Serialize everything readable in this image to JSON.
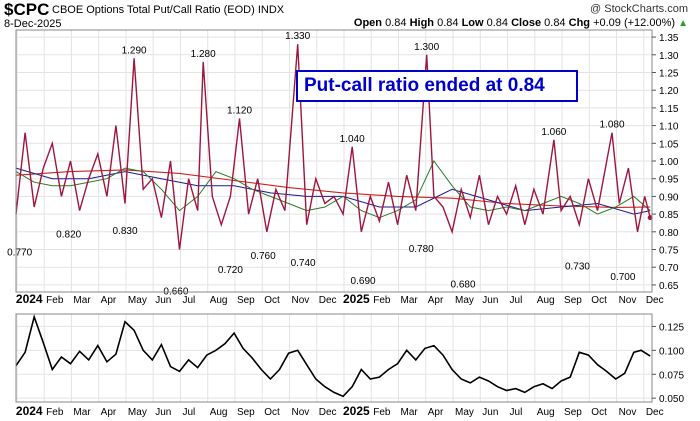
{
  "header": {
    "symbol": "$CPC",
    "description": "CBOE Options Total Put/Call Ratio (EOD)",
    "exchange": "INDX",
    "date": "8-Dec-2025",
    "watermark": "@ StockCharts.com",
    "open_label": "Open",
    "open": "0.84",
    "high_label": "High",
    "high": "0.84",
    "low_label": "Low",
    "low": "0.84",
    "close_label": "Close",
    "close": "0.84",
    "chg_label": "Chg",
    "chg": "+0.09 (+12.00%)"
  },
  "annotation": "Put-call ratio ended at 0.84",
  "colors": {
    "price": "#a0153e",
    "ma_short": "#2a7a2a",
    "ma_mid": "#1a1a8c",
    "ma_long": "#cc2222",
    "lower": "#000000",
    "callout": "#0000cc",
    "up_arrow": "#2a9d2a"
  },
  "chart_data": [
    {
      "type": "line",
      "title": "",
      "x_axis": {
        "months": [
          "2024",
          "Feb",
          "Mar",
          "Apr",
          "May",
          "Jun",
          "Jul",
          "Aug",
          "Sep",
          "Oct",
          "Nov",
          "Dec",
          "2025",
          "Feb",
          "Mar",
          "Apr",
          "May",
          "Jun",
          "Jul",
          "Aug",
          "Sep",
          "Oct",
          "Nov",
          "Dec"
        ]
      },
      "y_axis": {
        "ylim": [
          0.63,
          1.37
        ],
        "ticks": [
          "1.35",
          "1.30",
          "1.25",
          "1.20",
          "1.15",
          "1.10",
          "1.05",
          "1.00",
          "0.95",
          "0.90",
          "0.85",
          "0.80",
          "0.75",
          "0.70",
          "0.65"
        ],
        "position": "right"
      },
      "grid": true,
      "peak_labels": [
        {
          "t": 6.5,
          "v": 1.29,
          "text": "1.290"
        },
        {
          "t": 10.3,
          "v": 1.28,
          "text": "1.280"
        },
        {
          "t": 12.3,
          "v": 1.12,
          "text": "1.120"
        },
        {
          "t": 15.5,
          "v": 1.33,
          "text": "1.330"
        },
        {
          "t": 18.5,
          "v": 1.04,
          "text": "1.040"
        },
        {
          "t": 22.6,
          "v": 1.3,
          "text": "1.300"
        },
        {
          "t": 29.6,
          "v": 1.06,
          "text": "1.060"
        },
        {
          "t": 32.8,
          "v": 1.08,
          "text": "1.080"
        }
      ],
      "trough_labels": [
        {
          "t": 0.2,
          "v": 0.77,
          "text": "0.770"
        },
        {
          "t": 2.9,
          "v": 0.82,
          "text": "0.820"
        },
        {
          "t": 6.0,
          "v": 0.83,
          "text": "0.830"
        },
        {
          "t": 8.8,
          "v": 0.66,
          "text": "0.660"
        },
        {
          "t": 11.8,
          "v": 0.72,
          "text": "0.720"
        },
        {
          "t": 13.6,
          "v": 0.76,
          "text": "0.760"
        },
        {
          "t": 15.8,
          "v": 0.74,
          "text": "0.740"
        },
        {
          "t": 19.1,
          "v": 0.69,
          "text": "0.690"
        },
        {
          "t": 22.3,
          "v": 0.78,
          "text": "0.780"
        },
        {
          "t": 24.6,
          "v": 0.68,
          "text": "0.680"
        },
        {
          "t": 30.9,
          "v": 0.73,
          "text": "0.730"
        },
        {
          "t": 33.4,
          "v": 0.7,
          "text": "0.700"
        }
      ],
      "last": {
        "t": 34.9,
        "v": 0.84
      },
      "series": [
        {
          "name": "",
          "values": [
            [
              0,
              0.85
            ],
            [
              0.5,
              1.08
            ],
            [
              1,
              0.87
            ],
            [
              1.5,
              0.98
            ],
            [
              2,
              1.05
            ],
            [
              2.5,
              0.9
            ],
            [
              3,
              1.0
            ],
            [
              3.5,
              0.86
            ],
            [
              4,
              0.95
            ],
            [
              4.5,
              1.02
            ],
            [
              5,
              0.9
            ],
            [
              5.5,
              1.1
            ],
            [
              6,
              0.88
            ],
            [
              6.5,
              1.29
            ],
            [
              7,
              0.92
            ],
            [
              7.5,
              0.95
            ],
            [
              8,
              0.84
            ],
            [
              8.5,
              1.0
            ],
            [
              9,
              0.75
            ],
            [
              9.5,
              0.95
            ],
            [
              10,
              0.86
            ],
            [
              10.3,
              1.28
            ],
            [
              10.8,
              0.9
            ],
            [
              11.3,
              0.82
            ],
            [
              11.8,
              0.9
            ],
            [
              12.3,
              1.12
            ],
            [
              12.8,
              0.85
            ],
            [
              13.3,
              0.95
            ],
            [
              13.8,
              0.8
            ],
            [
              14.3,
              0.92
            ],
            [
              14.8,
              0.86
            ],
            [
              15.5,
              1.33
            ],
            [
              16,
              0.82
            ],
            [
              16.5,
              0.95
            ],
            [
              17,
              0.88
            ],
            [
              17.5,
              0.9
            ],
            [
              18,
              0.85
            ],
            [
              18.5,
              1.04
            ],
            [
              19,
              0.8
            ],
            [
              19.5,
              0.9
            ],
            [
              20,
              0.83
            ],
            [
              20.5,
              0.94
            ],
            [
              21,
              0.82
            ],
            [
              21.5,
              0.96
            ],
            [
              22,
              0.86
            ],
            [
              22.6,
              1.3
            ],
            [
              23,
              0.9
            ],
            [
              23.5,
              0.87
            ],
            [
              24,
              0.8
            ],
            [
              24.5,
              0.92
            ],
            [
              25,
              0.84
            ],
            [
              25.5,
              0.96
            ],
            [
              26,
              0.82
            ],
            [
              26.5,
              0.9
            ],
            [
              27,
              0.85
            ],
            [
              27.5,
              0.93
            ],
            [
              28,
              0.82
            ],
            [
              28.5,
              0.92
            ],
            [
              29,
              0.85
            ],
            [
              29.6,
              1.06
            ],
            [
              30,
              0.86
            ],
            [
              30.5,
              0.9
            ],
            [
              31,
              0.82
            ],
            [
              31.5,
              0.95
            ],
            [
              32,
              0.86
            ],
            [
              32.8,
              1.08
            ],
            [
              33.2,
              0.88
            ],
            [
              33.7,
              0.98
            ],
            [
              34.2,
              0.8
            ],
            [
              34.6,
              0.9
            ],
            [
              34.9,
              0.84
            ]
          ]
        },
        {
          "name": "",
          "values": [
            [
              0,
              0.97
            ],
            [
              1,
              0.94
            ],
            [
              2,
              0.93
            ],
            [
              3,
              0.93
            ],
            [
              4,
              0.94
            ],
            [
              5,
              0.95
            ],
            [
              6,
              0.98
            ],
            [
              7,
              0.97
            ],
            [
              8,
              0.92
            ],
            [
              9,
              0.86
            ],
            [
              10,
              0.9
            ],
            [
              11,
              0.97
            ],
            [
              12,
              0.95
            ],
            [
              13,
              0.92
            ],
            [
              14,
              0.9
            ],
            [
              15,
              0.88
            ],
            [
              16,
              0.86
            ],
            [
              17,
              0.87
            ],
            [
              18,
              0.9
            ],
            [
              19,
              0.86
            ],
            [
              20,
              0.84
            ],
            [
              21,
              0.86
            ],
            [
              22,
              0.89
            ],
            [
              23,
              1.0
            ],
            [
              24,
              0.93
            ],
            [
              25,
              0.87
            ],
            [
              26,
              0.86
            ],
            [
              27,
              0.87
            ],
            [
              28,
              0.86
            ],
            [
              29,
              0.88
            ],
            [
              30,
              0.9
            ],
            [
              31,
              0.88
            ],
            [
              32,
              0.85
            ],
            [
              33,
              0.87
            ],
            [
              34,
              0.9
            ],
            [
              34.9,
              0.86
            ]
          ]
        },
        {
          "name": "",
          "values": [
            [
              0,
              0.98
            ],
            [
              2,
              0.95
            ],
            [
              4,
              0.95
            ],
            [
              6,
              0.97
            ],
            [
              8,
              0.95
            ],
            [
              10,
              0.93
            ],
            [
              12,
              0.93
            ],
            [
              14,
              0.91
            ],
            [
              16,
              0.9
            ],
            [
              18,
              0.9
            ],
            [
              20,
              0.87
            ],
            [
              22,
              0.87
            ],
            [
              24,
              0.92
            ],
            [
              26,
              0.89
            ],
            [
              28,
              0.86
            ],
            [
              30,
              0.87
            ],
            [
              32,
              0.88
            ],
            [
              34,
              0.85
            ],
            [
              34.9,
              0.86
            ]
          ]
        },
        {
          "name": "",
          "values": [
            [
              0,
              0.96
            ],
            [
              3,
              0.97
            ],
            [
              6,
              0.975
            ],
            [
              9,
              0.965
            ],
            [
              12,
              0.945
            ],
            [
              15,
              0.925
            ],
            [
              18,
              0.91
            ],
            [
              21,
              0.9
            ],
            [
              24,
              0.895
            ],
            [
              27,
              0.88
            ],
            [
              30,
              0.873
            ],
            [
              33,
              0.869
            ],
            [
              34.9,
              0.87
            ]
          ]
        }
      ]
    },
    {
      "type": "line",
      "title": "",
      "y_axis": {
        "ylim": [
          0.046,
          0.138
        ],
        "ticks": [
          "0.125",
          "0.100",
          "0.075",
          "0.050"
        ],
        "position": "right"
      },
      "grid": true,
      "series": [
        {
          "name": "",
          "values": [
            [
              0,
              0.084
            ],
            [
              0.5,
              0.098
            ],
            [
              1,
              0.135
            ],
            [
              1.5,
              0.108
            ],
            [
              2,
              0.08
            ],
            [
              2.5,
              0.093
            ],
            [
              3,
              0.086
            ],
            [
              3.5,
              0.099
            ],
            [
              4,
              0.09
            ],
            [
              4.5,
              0.105
            ],
            [
              5,
              0.088
            ],
            [
              5.5,
              0.096
            ],
            [
              6,
              0.13
            ],
            [
              6.5,
              0.121
            ],
            [
              7,
              0.1
            ],
            [
              7.5,
              0.09
            ],
            [
              8,
              0.106
            ],
            [
              8.5,
              0.083
            ],
            [
              9,
              0.078
            ],
            [
              9.5,
              0.09
            ],
            [
              10,
              0.082
            ],
            [
              10.5,
              0.095
            ],
            [
              11,
              0.1
            ],
            [
              11.5,
              0.107
            ],
            [
              12,
              0.118
            ],
            [
              12.5,
              0.102
            ],
            [
              13,
              0.092
            ],
            [
              13.5,
              0.08
            ],
            [
              14,
              0.07
            ],
            [
              14.5,
              0.08
            ],
            [
              15,
              0.097
            ],
            [
              15.5,
              0.1
            ],
            [
              16,
              0.085
            ],
            [
              16.5,
              0.07
            ],
            [
              17,
              0.062
            ],
            [
              17.5,
              0.056
            ],
            [
              18,
              0.052
            ],
            [
              18.5,
              0.062
            ],
            [
              19,
              0.08
            ],
            [
              19.5,
              0.07
            ],
            [
              20,
              0.072
            ],
            [
              20.5,
              0.08
            ],
            [
              21,
              0.086
            ],
            [
              21.5,
              0.1
            ],
            [
              22,
              0.09
            ],
            [
              22.5,
              0.102
            ],
            [
              23,
              0.105
            ],
            [
              23.5,
              0.095
            ],
            [
              24,
              0.08
            ],
            [
              24.5,
              0.07
            ],
            [
              25,
              0.066
            ],
            [
              25.5,
              0.072
            ],
            [
              26,
              0.068
            ],
            [
              26.5,
              0.062
            ],
            [
              27,
              0.058
            ],
            [
              27.5,
              0.06
            ],
            [
              28,
              0.056
            ],
            [
              28.5,
              0.062
            ],
            [
              29,
              0.065
            ],
            [
              29.5,
              0.06
            ],
            [
              30,
              0.068
            ],
            [
              30.5,
              0.072
            ],
            [
              31,
              0.098
            ],
            [
              31.5,
              0.095
            ],
            [
              32,
              0.085
            ],
            [
              32.5,
              0.078
            ],
            [
              33,
              0.07
            ],
            [
              33.5,
              0.076
            ],
            [
              34,
              0.098
            ],
            [
              34.4,
              0.1
            ],
            [
              34.9,
              0.094
            ]
          ]
        }
      ]
    }
  ]
}
